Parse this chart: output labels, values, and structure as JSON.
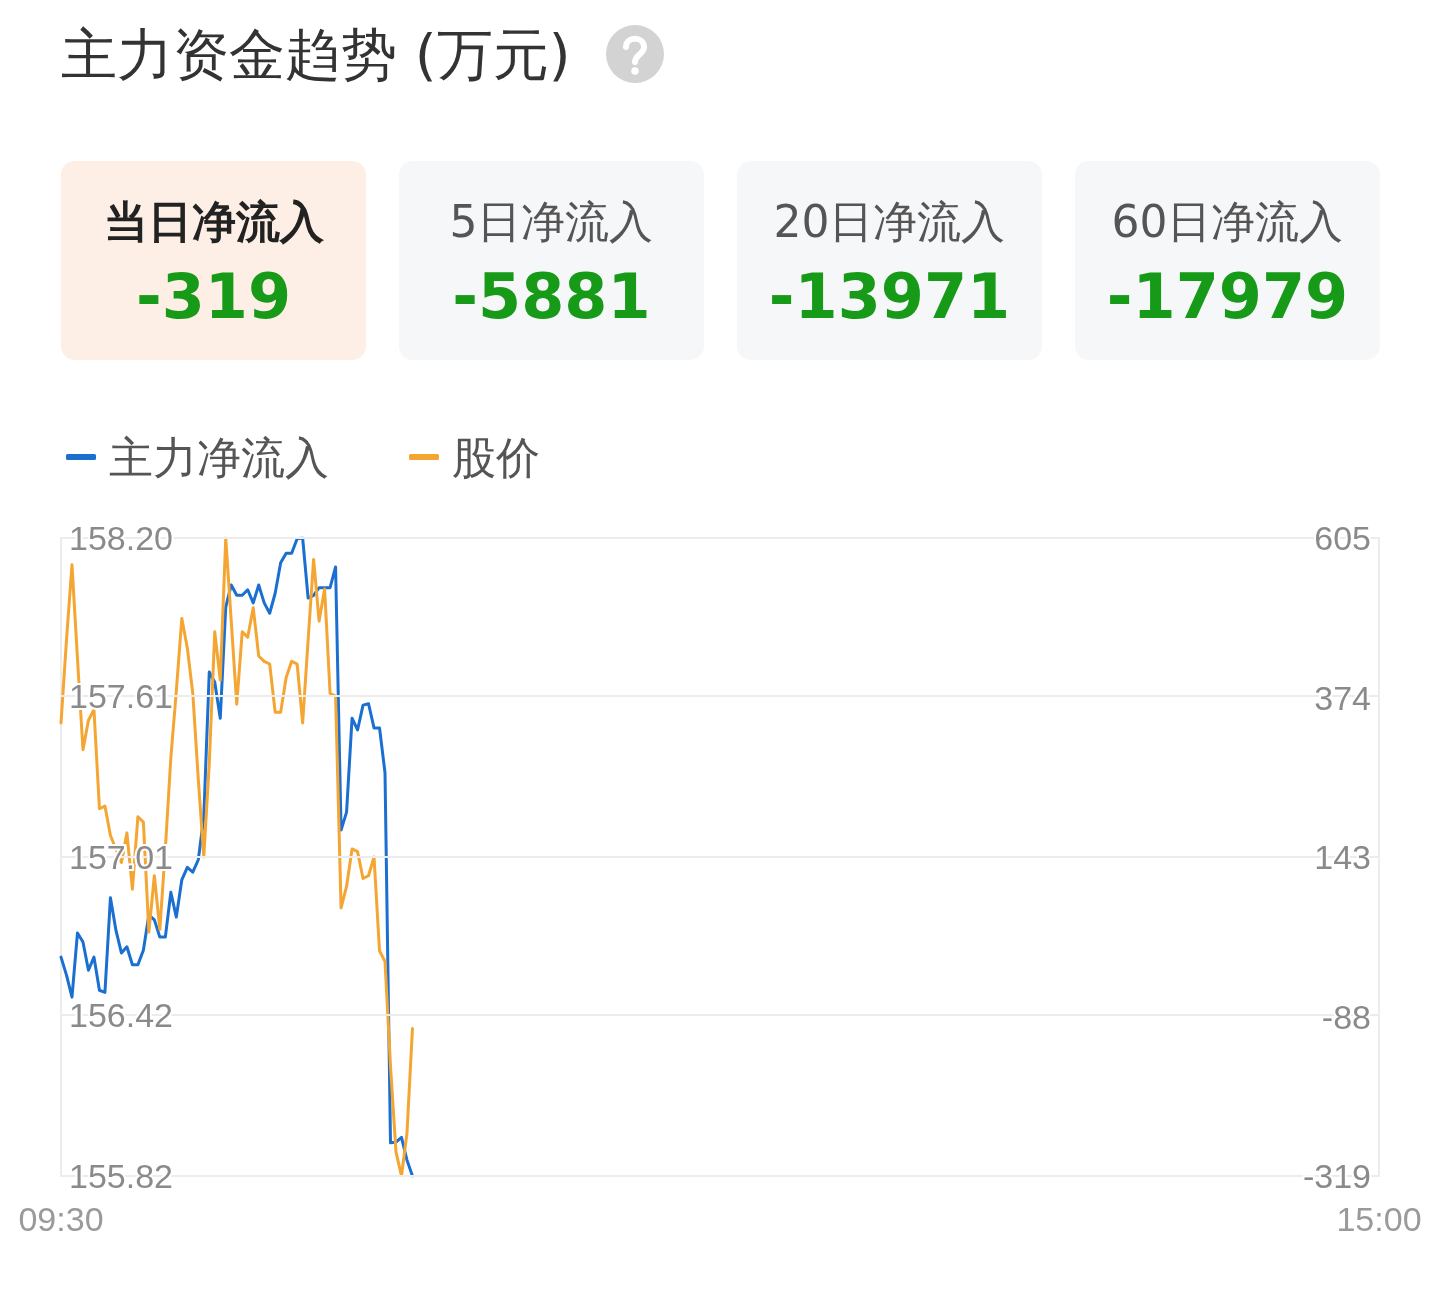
{
  "chart_data": [
    {
      "type": "other",
      "title": "主力资金趋势 (万元)",
      "annotations": [
        "当日净流入",
        "-319",
        "5日净流入",
        "-5881",
        "20日净流入",
        "-13971",
        "60日净流入",
        "-17979"
      ]
    },
    {
      "type": "line",
      "legend": "top left",
      "grid": "y",
      "line_style": "solid",
      "categories": [
        "09:30",
        null,
        null,
        null,
        null,
        null,
        null,
        null,
        null,
        null,
        null,
        null,
        null,
        null,
        null,
        null,
        null,
        null,
        null,
        null,
        null,
        null,
        null,
        null,
        null,
        null,
        null,
        null,
        null,
        null,
        null,
        null,
        null,
        null,
        null,
        null,
        null,
        null,
        null,
        null,
        null,
        null,
        null,
        null,
        null,
        null,
        null,
        null,
        null,
        null,
        null,
        null,
        null,
        null,
        null,
        null,
        null,
        null,
        null,
        null,
        null,
        null,
        null,
        null,
        null,
        null,
        null,
        null,
        null,
        null,
        null,
        null,
        null,
        null,
        null,
        null,
        null,
        null,
        null,
        null,
        null,
        null,
        null,
        null,
        null,
        null,
        null,
        null,
        null,
        null,
        null,
        null,
        null,
        null,
        null,
        null,
        null,
        null,
        null,
        null,
        null,
        null,
        null,
        null,
        null,
        null,
        null,
        null,
        null,
        null,
        null,
        null,
        null,
        null,
        null,
        null,
        null,
        null,
        null,
        null,
        null,
        null,
        null,
        null,
        null,
        null,
        null,
        null,
        null,
        null,
        null,
        null,
        null,
        null,
        null,
        null,
        null,
        null,
        null,
        null,
        null,
        null,
        null,
        null,
        null,
        null,
        null,
        null,
        null,
        null,
        null,
        null,
        null,
        null,
        null,
        null,
        null,
        null,
        null,
        null,
        null,
        null,
        null,
        null,
        null,
        null,
        null,
        null,
        null,
        null,
        null,
        null,
        null,
        null,
        null,
        null,
        null,
        null,
        null,
        null,
        null,
        null,
        null,
        null,
        null,
        null,
        null,
        null,
        null,
        null,
        null,
        null,
        null,
        null,
        null,
        null,
        null,
        null,
        null,
        null,
        null,
        null,
        null,
        null,
        null,
        null,
        null,
        null,
        null,
        null,
        null,
        null,
        null,
        null,
        null,
        null,
        null,
        null,
        null,
        null,
        null,
        null,
        null,
        null,
        null,
        null,
        null,
        null,
        null,
        null,
        null,
        null,
        null,
        null,
        null,
        null,
        null,
        null,
        null,
        null,
        "15:00"
      ],
      "ylim": [
        155.82,
        158.2
      ],
      "yticks": [
        155.82,
        156.42,
        157.01,
        157.61,
        {
          "value": 158.2,
          "label": "158.20"
        }
      ],
      "y2lim": [
        -319,
        605
      ],
      "y2ticks": [
        -319,
        -88,
        143,
        374,
        605
      ],
      "series": [
        {
          "name": "主力净流入",
          "color": "#1a6fd0",
          "axis": "y2",
          "values": [
            -2,
            -28,
            -60,
            33,
            20,
            -21,
            -2,
            -50,
            -53,
            84,
            37,
            4,
            13,
            -13,
            -13,
            8,
            59,
            52,
            27,
            27,
            92,
            56,
            110,
            128,
            121,
            139,
            201,
            411,
            396,
            344,
            505,
            537,
            522,
            522,
            530,
            511,
            537,
            511,
            496,
            525,
            569,
            583,
            583,
            604,
            605,
            518,
            522,
            533,
            533,
            533,
            563,
            182,
            208,
            344,
            327,
            363,
            365,
            330,
            330,
            265,
            -271,
            -270,
            -263,
            -296,
            -319,
            null,
            null,
            null,
            null,
            null,
            null,
            null,
            null,
            null,
            null,
            null,
            null,
            null,
            null,
            null,
            null,
            null,
            null,
            null,
            null,
            null,
            null,
            null,
            null,
            null,
            null,
            null,
            null,
            null,
            null,
            null,
            null,
            null,
            null,
            null,
            null,
            null,
            null,
            null,
            null,
            null,
            null,
            null,
            null,
            null,
            null,
            null,
            null,
            null,
            null,
            null,
            null,
            null,
            null,
            null,
            null,
            null,
            null,
            null,
            null,
            null,
            null,
            null,
            null,
            null,
            null,
            null,
            null,
            null,
            null,
            null,
            null,
            null,
            null,
            null,
            null,
            null,
            null,
            null,
            null,
            null,
            null,
            null,
            null,
            null,
            null,
            null,
            null,
            null,
            null,
            null,
            null,
            null,
            null,
            null,
            null,
            null,
            null,
            null,
            null,
            null,
            null,
            null,
            null,
            null,
            null,
            null,
            null,
            null,
            null,
            null,
            null,
            null,
            null,
            null,
            null,
            null,
            null,
            null,
            null,
            null,
            null,
            null,
            null,
            null,
            null,
            null,
            null,
            null,
            null,
            null,
            null,
            null,
            null,
            null,
            null,
            null,
            null,
            null,
            null,
            null,
            null,
            null,
            null,
            null,
            null,
            null,
            null,
            null,
            null,
            null,
            null,
            null,
            null,
            null,
            null,
            null,
            null,
            null,
            null,
            null,
            null,
            null,
            null,
            null,
            null,
            null,
            null,
            null,
            null,
            null,
            null,
            null,
            null,
            null,
            null
          ]
        },
        {
          "name": "股价",
          "color": "#f4a532",
          "axis": "y",
          "values": [
            157.51,
            157.82,
            158.1,
            157.75,
            157.41,
            157.52,
            157.56,
            157.19,
            157.2,
            157.09,
            157.04,
            156.99,
            157.1,
            156.89,
            157.16,
            157.14,
            156.73,
            156.94,
            156.74,
            157.04,
            157.38,
            157.63,
            157.9,
            157.79,
            157.62,
            157.3,
            157.01,
            157.36,
            157.85,
            157.67,
            158.2,
            157.89,
            157.58,
            157.85,
            157.83,
            157.94,
            157.76,
            157.74,
            157.73,
            157.55,
            157.55,
            157.68,
            157.74,
            157.73,
            157.51,
            157.82,
            158.12,
            157.89,
            158.01,
            157.62,
            157.61,
            156.82,
            156.9,
            157.04,
            157.03,
            156.93,
            156.94,
            157.01,
            156.66,
            156.62,
            156.23,
            155.91,
            155.82,
            155.98,
            156.37,
            null,
            null,
            null,
            null,
            null,
            null,
            null,
            null,
            null,
            null,
            null,
            null,
            null,
            null,
            null,
            null,
            null,
            null,
            null,
            null,
            null,
            null,
            null,
            null,
            null,
            null,
            null,
            null,
            null,
            null,
            null,
            null,
            null,
            null,
            null,
            null,
            null,
            null,
            null,
            null,
            null,
            null,
            null,
            null,
            null,
            null,
            null,
            null,
            null,
            null,
            null,
            null,
            null,
            null,
            null,
            null,
            null,
            null,
            null,
            null,
            null,
            null,
            null,
            null,
            null,
            null,
            null,
            null,
            null,
            null,
            null,
            null,
            null,
            null,
            null,
            null,
            null,
            null,
            null,
            null,
            null,
            null,
            null,
            null,
            null,
            null,
            null,
            null,
            null,
            null,
            null,
            null,
            null,
            null,
            null,
            null,
            null,
            null,
            null,
            null,
            null,
            null,
            null,
            null,
            null,
            null,
            null,
            null,
            null,
            null,
            null,
            null,
            null,
            null,
            null,
            null,
            null,
            null,
            null,
            null,
            null,
            null,
            null,
            null,
            null,
            null,
            null,
            null,
            null,
            null,
            null,
            null,
            null,
            null,
            null,
            null,
            null,
            null,
            null,
            null,
            null,
            null,
            null,
            null,
            null,
            null,
            null,
            null,
            null,
            null,
            null,
            null,
            null,
            null,
            null,
            null,
            null,
            null,
            null,
            null,
            null,
            null,
            null,
            null,
            null,
            null,
            null,
            null,
            null,
            null,
            null,
            null,
            null,
            null,
            null,
            null
          ]
        }
      ]
    }
  ]
}
